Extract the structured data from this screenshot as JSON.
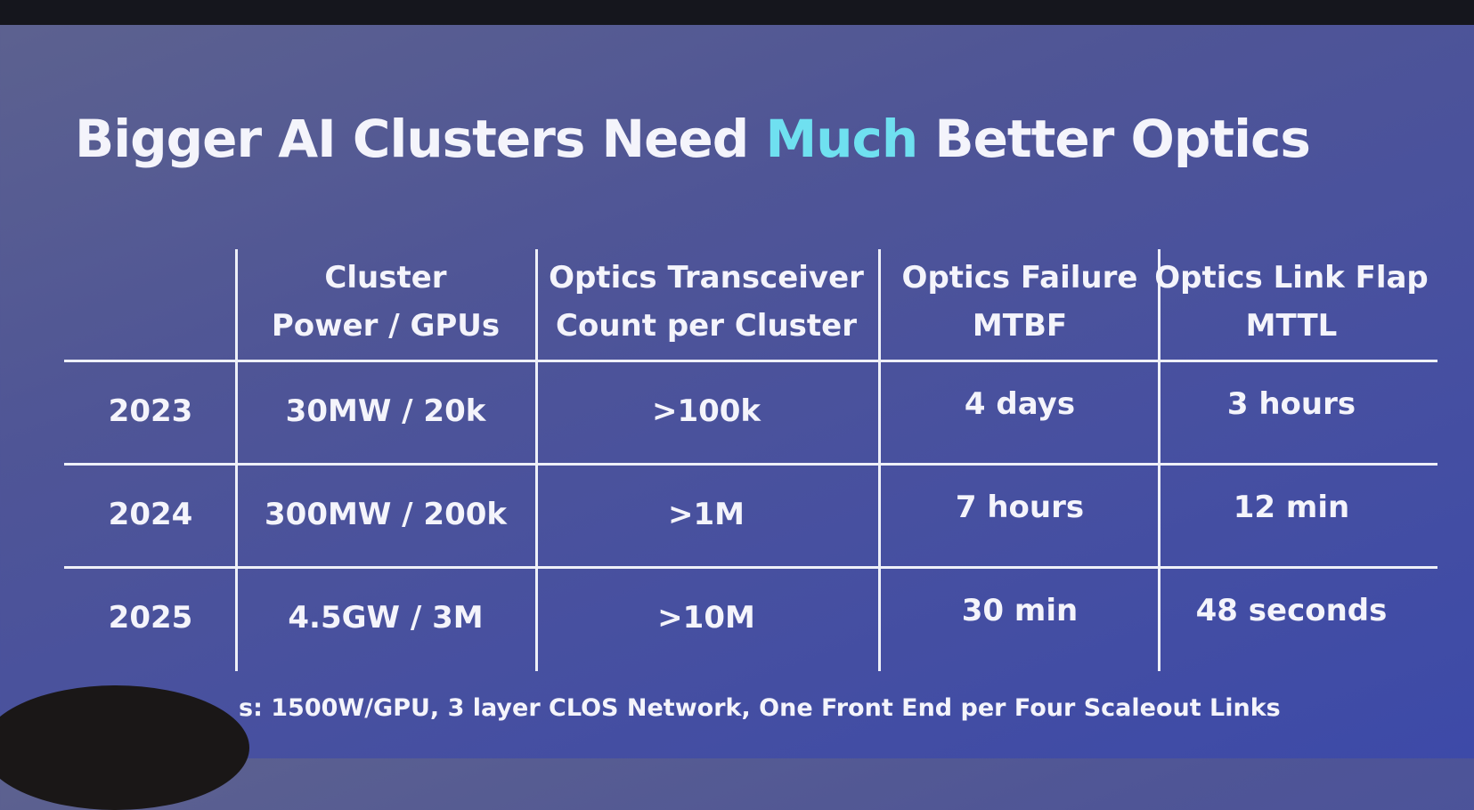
{
  "title": {
    "parts": [
      "Bigger AI Clusters Need",
      "Much",
      "Better Optics"
    ]
  },
  "table": {
    "headers": [
      [
        "Cluster",
        "Power / GPUs"
      ],
      [
        "Optics Transceiver",
        "Count per Cluster"
      ],
      [
        "Optics Failure",
        "MTBF"
      ],
      [
        "Optics Link Flap",
        "MTTL"
      ]
    ],
    "rows": [
      {
        "year": "2023",
        "cells": [
          "30MW / 20k",
          ">100k",
          "4 days",
          "3 hours"
        ]
      },
      {
        "year": "2024",
        "cells": [
          "300MW / 200k",
          ">1M",
          "7 hours",
          "12 min"
        ]
      },
      {
        "year": "2025",
        "cells": [
          "4.5GW / 3M",
          ">10M",
          "30 min",
          "48 seconds"
        ]
      }
    ]
  },
  "footnote": "s: 1500W/GPU, 3 layer CLOS Network, One Front End per Four Scaleout Links"
}
